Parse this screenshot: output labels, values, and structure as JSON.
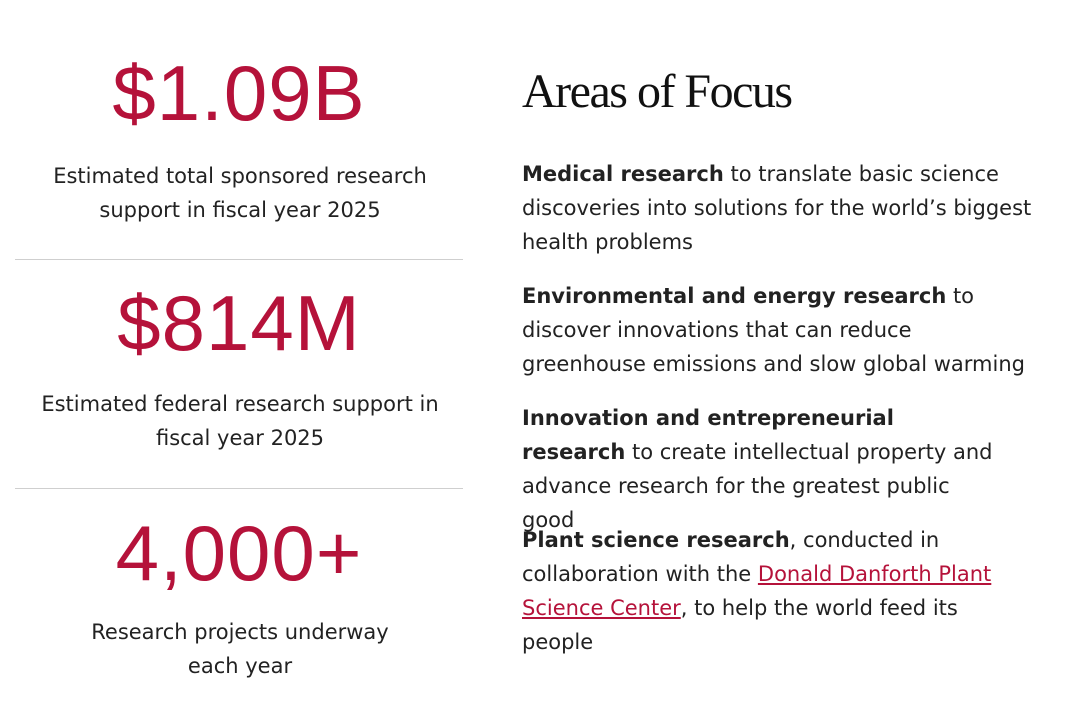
{
  "stats": [
    {
      "value": "$1.09B",
      "label": "Estimated total sponsored research support in fiscal year 2025"
    },
    {
      "value": "$814M",
      "label": "Estimated federal research support in fiscal year 2025"
    },
    {
      "value": "4,000+",
      "label": "Research projects underway each year"
    }
  ],
  "focus": {
    "title": "Areas of Focus",
    "items": [
      {
        "lead": "Medical research",
        "text": "to translate basic science discoveries into solutions for the world’s biggest health problems"
      },
      {
        "lead": "Environmental and energy research",
        "text": "to discover innovations that can reduce greenhouse emissions and slow global warming"
      },
      {
        "lead": "Innovation and entrepreneurial research",
        "text": "to create intellectual property and advance research for the greatest public good"
      },
      {
        "lead": "Plant science research",
        "text": ", conducted in collaboration with the",
        "link": "Donald Danforth Plant Science Center",
        "after": ", to help the world feed its people"
      }
    ]
  }
}
